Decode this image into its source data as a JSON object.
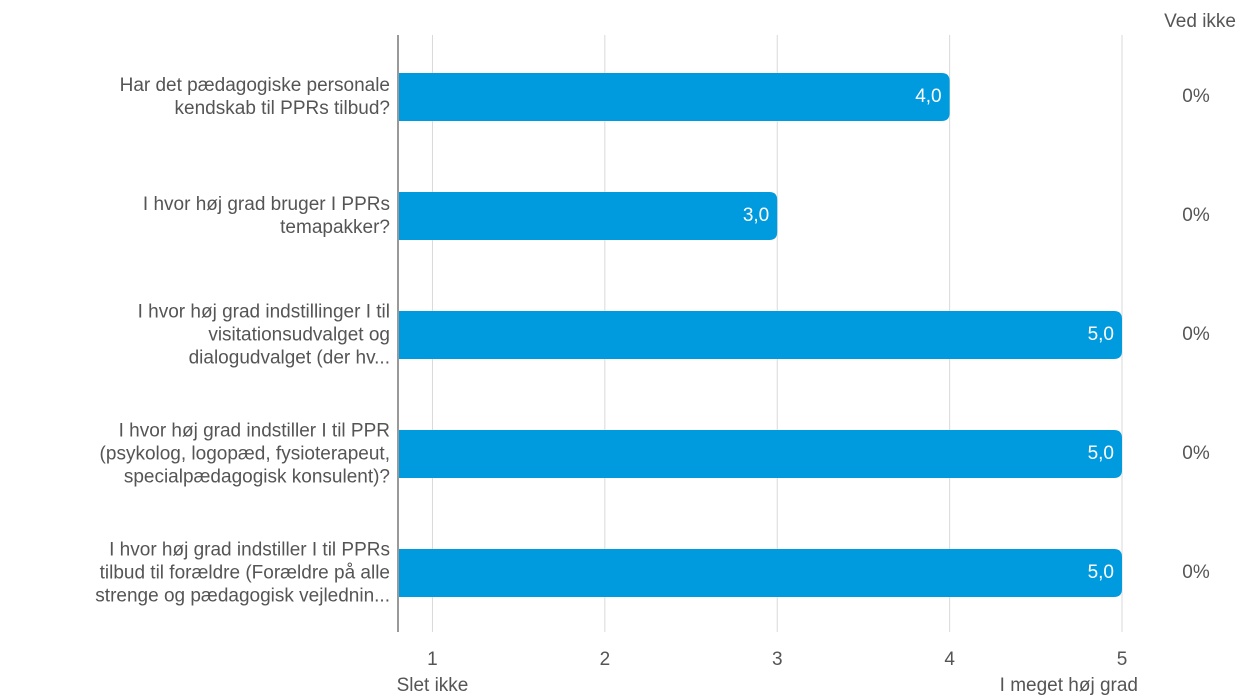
{
  "chart_data": {
    "type": "barh",
    "categories": [
      "Har det pædagogiske personale\nkendskab til PPRs tilbud?",
      "I hvor høj grad bruger I PPRs\ntemapakker?",
      "I hvor høj grad indstillinger I til\nvisitationsudvalget og\ndialogudvalget (der hv...",
      "I hvor høj grad indstiller I til PPR\n(psykolog, logopæd, fysioterapeut,\nspecialpædagogisk konsulent)?",
      "I hvor høj grad indstiller I til PPRs\ntilbud til forældre (Forældre på alle\nstrenge og pædagogisk vejlednin..."
    ],
    "values": [
      4,
      3,
      5,
      5,
      5
    ],
    "value_labels": [
      "4,0",
      "3,0",
      "5,0",
      "5,0",
      "5,0"
    ],
    "color": "#009ade",
    "xlim": [
      0.8,
      5
    ],
    "xticks": [
      1,
      2,
      3,
      4,
      5
    ],
    "grid": true,
    "scale_labels": {
      "low": "Slet ikke",
      "high": "I meget høj grad"
    },
    "ved_ikke": {
      "title": "Ved ikke",
      "values": [
        0,
        0,
        0,
        0,
        0
      ],
      "value_labels": [
        "0%",
        "0%",
        "0%",
        "0%",
        "0%"
      ]
    }
  }
}
